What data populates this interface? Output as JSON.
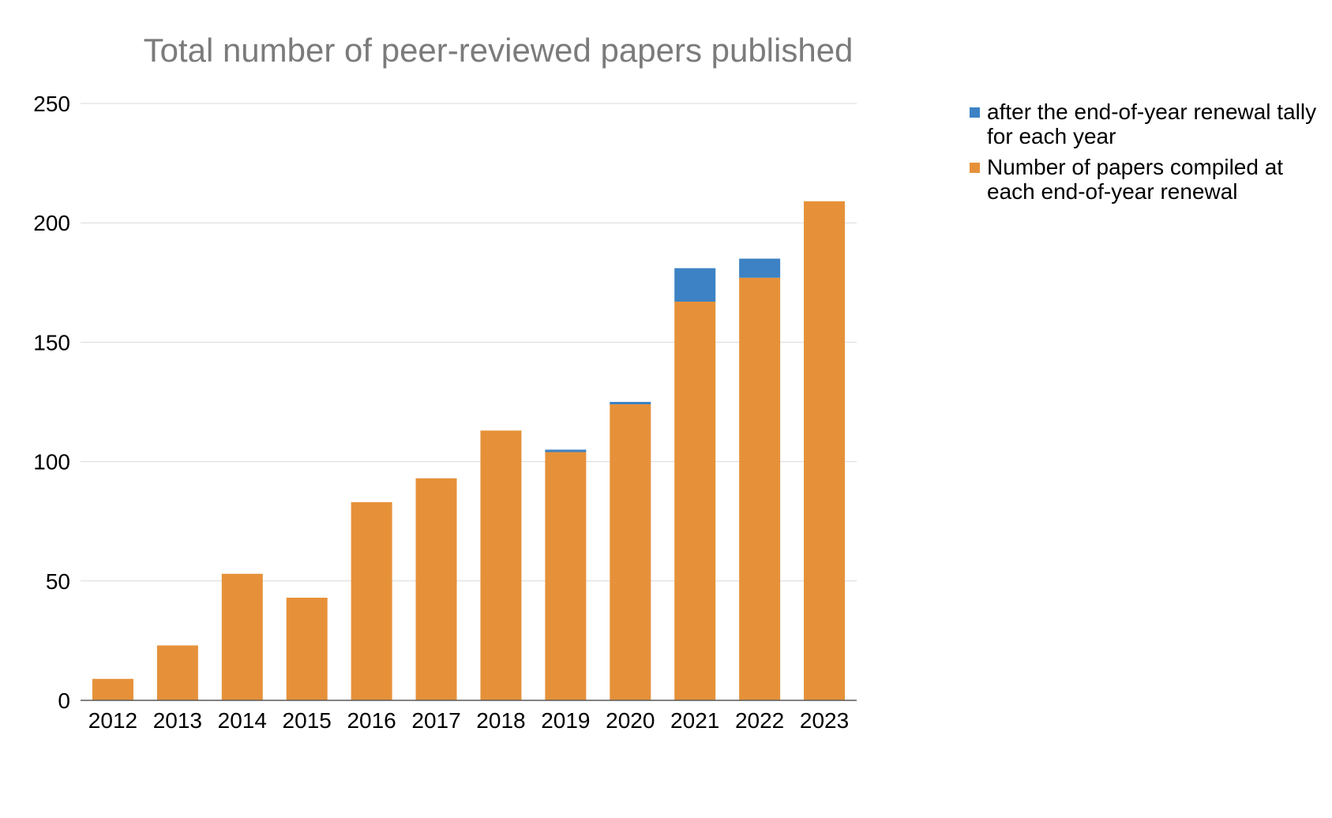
{
  "chart_data": {
    "type": "bar",
    "stacked": true,
    "title": "Total number of peer-reviewed papers published",
    "xlabel": "",
    "ylabel": "",
    "ylim": [
      0,
      250
    ],
    "yticks": [
      0,
      50,
      100,
      150,
      200,
      250
    ],
    "grid": true,
    "legend_position": "right",
    "categories": [
      "2012",
      "2013",
      "2014",
      "2015",
      "2016",
      "2017",
      "2018",
      "2019",
      "2020",
      "2021",
      "2022",
      "2023"
    ],
    "series": [
      {
        "name": "Number of papers compiled at each end-of-year renewal",
        "color": "#E6913A",
        "values": [
          9,
          23,
          53,
          43,
          83,
          93,
          113,
          104,
          124,
          167,
          177,
          209
        ]
      },
      {
        "name": "after the end-of-year renewal tally for each year",
        "color": "#3C82C4",
        "values": [
          0,
          0,
          0,
          0,
          0,
          0,
          0,
          1,
          1,
          14,
          8,
          0
        ]
      }
    ]
  }
}
